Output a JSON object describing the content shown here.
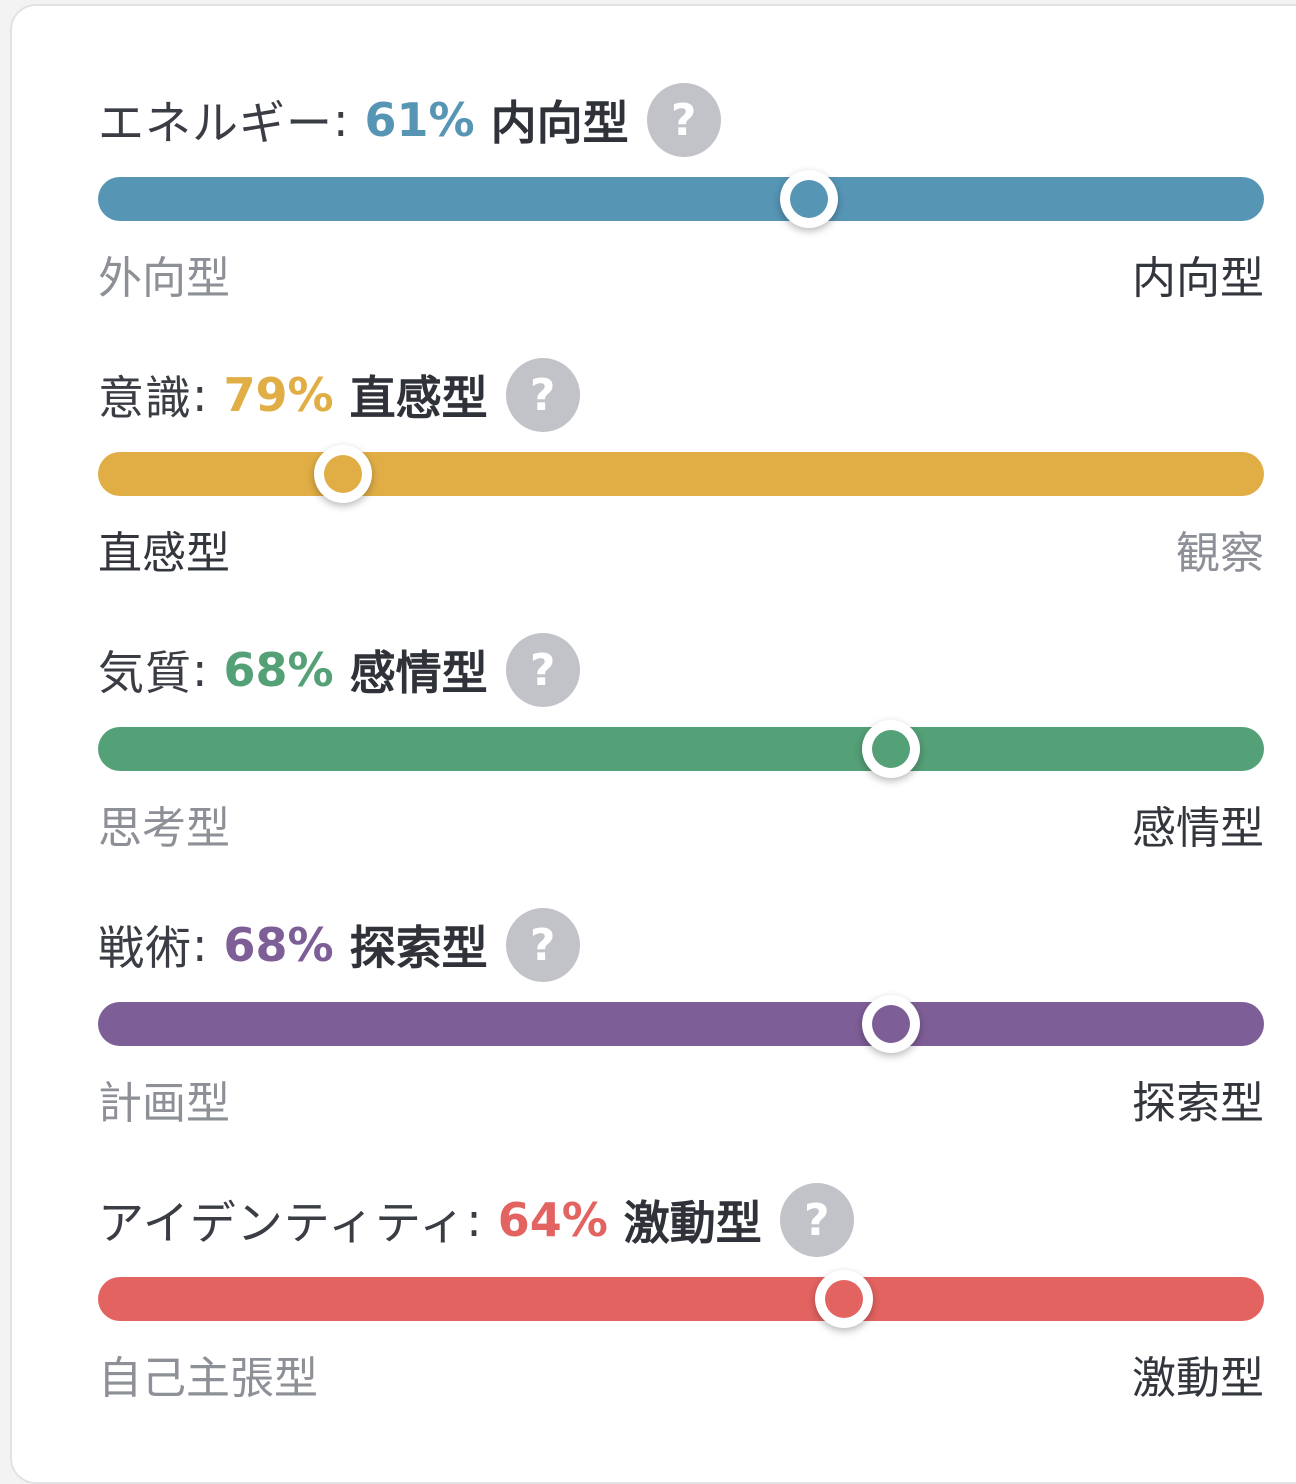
{
  "colors": {
    "energy": "#5795b5",
    "mind": "#e0ae45",
    "nature": "#54a077",
    "tactics": "#7e5e96",
    "identity": "#e36361"
  },
  "traits": [
    {
      "label": "エネルギー",
      "percent": "61%",
      "value": 61,
      "result": "内向型",
      "left_pole": "外向型",
      "right_pole": "内向型",
      "active_side": "right",
      "color_key": "energy",
      "help_icon": "question-circle-icon",
      "help_glyph": "?"
    },
    {
      "label": "意識",
      "percent": "79%",
      "value": 79,
      "result": "直感型",
      "left_pole": "直感型",
      "right_pole": "観察",
      "active_side": "left",
      "color_key": "mind",
      "help_icon": "question-circle-icon",
      "help_glyph": "?"
    },
    {
      "label": "気質",
      "percent": "68%",
      "value": 68,
      "result": "感情型",
      "left_pole": "思考型",
      "right_pole": "感情型",
      "active_side": "right",
      "color_key": "nature",
      "help_icon": "question-circle-icon",
      "help_glyph": "?"
    },
    {
      "label": "戦術",
      "percent": "68%",
      "value": 68,
      "result": "探索型",
      "left_pole": "計画型",
      "right_pole": "探索型",
      "active_side": "right",
      "color_key": "tactics",
      "help_icon": "question-circle-icon",
      "help_glyph": "?"
    },
    {
      "label": "アイデンティティ",
      "percent": "64%",
      "value": 64,
      "result": "激動型",
      "left_pole": "自己主張型",
      "right_pole": "激動型",
      "active_side": "right",
      "color_key": "identity",
      "help_icon": "question-circle-icon",
      "help_glyph": "?"
    }
  ]
}
